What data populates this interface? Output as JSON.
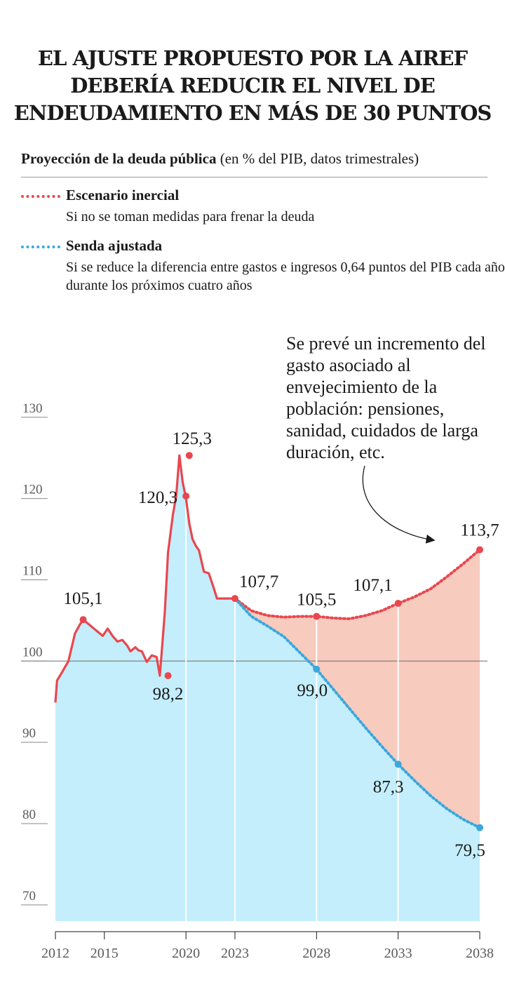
{
  "title_lines": [
    "EL AJUSTE PROPUESTO POR LA AIREF",
    "DEBERÍA REDUCIR EL NIVEL DE",
    "ENDEUDAMIENTO EN MÁS DE 30 PUNTOS"
  ],
  "subtitle": {
    "bold": "Proyección de la deuda pública",
    "rest": " (en % del PIB, datos trimestrales)"
  },
  "legend": [
    {
      "name": "Escenario inercial",
      "desc": "Si no se toman medidas para frenar la deuda",
      "color": "#e8474f"
    },
    {
      "name": "Senda ajustada",
      "desc": "Si se reduce la diferencia entre gastos e ingresos 0,64 puntos del PIB cada año durante los próximos cuatro años",
      "color": "#3aa7dd"
    }
  ],
  "annotation": "Se prevé un incremento del gasto asociado al envejecimiento de la población: pensiones, sanidad, cuidados de larga duración, etc.",
  "colors": {
    "inercial": "#e8474f",
    "ajustada": "#3aa7dd",
    "area_history": "#c4eefc",
    "area_gap": "#f8cbbf",
    "axis_text": "#5a5a5a"
  },
  "chart_data": {
    "type": "area",
    "title": "Proyección de la deuda pública",
    "ylabel": "en % del PIB, datos trimestrales",
    "ylim": [
      68,
      133
    ],
    "xlim": [
      2012,
      2038
    ],
    "yticks": [
      70,
      80,
      90,
      100,
      110,
      120,
      130
    ],
    "xticks": [
      2012,
      2015,
      2020,
      2023,
      2028,
      2033,
      2038
    ],
    "reference_line": 100,
    "historical": {
      "x": [
        2012.0,
        2012.1,
        2012.4,
        2012.8,
        2013.2,
        2013.5,
        2013.7,
        2014.0,
        2014.3,
        2014.6,
        2014.9,
        2015.2,
        2015.5,
        2015.8,
        2016.1,
        2016.4,
        2016.6,
        2016.9,
        2017.1,
        2017.3,
        2017.6,
        2017.9,
        2018.2,
        2018.4,
        2018.7,
        2018.9,
        2019.2,
        2019.4,
        2019.6,
        2019.8,
        2020.0,
        2020.2,
        2020.4,
        2020.6,
        2020.8,
        2021.1,
        2021.4,
        2021.7,
        2021.9,
        2022.2,
        2022.6,
        2022.9,
        2023.0
      ],
      "y": [
        94.9,
        97.6,
        98.6,
        100.0,
        103.4,
        104.5,
        105.1,
        104.6,
        104.1,
        103.6,
        103.1,
        104.0,
        103.1,
        102.4,
        102.6,
        101.9,
        101.2,
        101.7,
        101.3,
        101.2,
        99.9,
        100.7,
        100.5,
        98.2,
        105.9,
        113.4,
        118.0,
        120.3,
        125.3,
        122.0,
        120.0,
        117.0,
        115.0,
        114.2,
        113.6,
        111.0,
        110.8,
        109.0,
        107.7,
        107.7,
        107.7,
        107.7,
        107.7
      ]
    },
    "series": [
      {
        "name": "Escenario inercial",
        "x": [
          2023,
          2024,
          2025,
          2026,
          2027,
          2028,
          2029,
          2030,
          2031,
          2032,
          2033,
          2034,
          2035,
          2036,
          2037,
          2038
        ],
        "y": [
          107.7,
          106.2,
          105.6,
          105.4,
          105.5,
          105.5,
          105.3,
          105.2,
          105.6,
          106.2,
          107.1,
          107.9,
          108.9,
          110.4,
          112.0,
          113.7
        ]
      },
      {
        "name": "Senda ajustada",
        "x": [
          2023,
          2024,
          2025,
          2026,
          2027,
          2028,
          2029,
          2030,
          2031,
          2032,
          2033,
          2034,
          2035,
          2036,
          2037,
          2038
        ],
        "y": [
          107.7,
          105.5,
          104.3,
          103.0,
          101.0,
          99.0,
          96.6,
          94.2,
          91.8,
          89.5,
          87.3,
          85.3,
          83.4,
          81.8,
          80.5,
          79.5
        ]
      }
    ],
    "labels": [
      {
        "x": 2013.7,
        "y": 105.1,
        "text": "105,1",
        "color": "#e8474f"
      },
      {
        "x": 2018.9,
        "y": 98.2,
        "text": "98,2",
        "color": "#e8474f"
      },
      {
        "x": 2020.0,
        "y": 120.3,
        "text": "120,3",
        "color": "#e8474f"
      },
      {
        "x": 2020.2,
        "y": 125.3,
        "text": "125,3",
        "color": "#e8474f"
      },
      {
        "x": 2023,
        "y": 107.7,
        "text": "107,7",
        "color": "#e8474f"
      },
      {
        "x": 2028,
        "y": 105.5,
        "text": "105,5",
        "color": "#e8474f"
      },
      {
        "x": 2033,
        "y": 107.1,
        "text": "107,1",
        "color": "#e8474f"
      },
      {
        "x": 2038,
        "y": 113.7,
        "text": "113,7",
        "color": "#e8474f"
      },
      {
        "x": 2028,
        "y": 99.0,
        "text": "99,0",
        "color": "#3aa7dd"
      },
      {
        "x": 2033,
        "y": 87.3,
        "text": "87,3",
        "color": "#3aa7dd"
      },
      {
        "x": 2038,
        "y": 79.5,
        "text": "79,5",
        "color": "#3aa7dd"
      }
    ]
  }
}
